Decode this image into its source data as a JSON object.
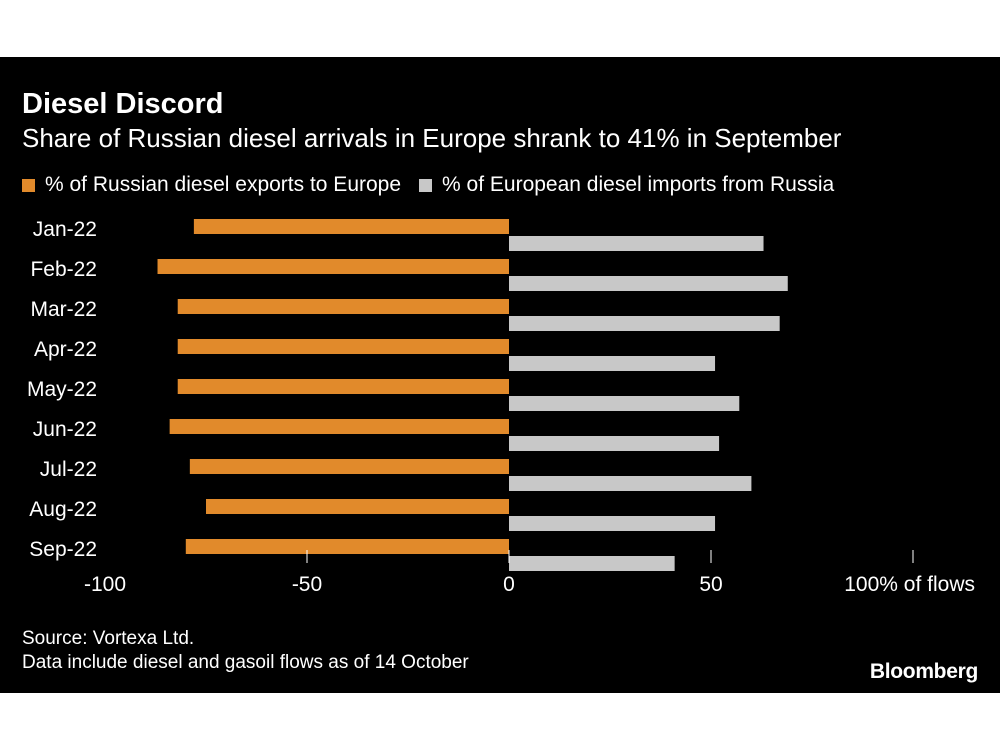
{
  "header": {
    "title": "Diesel Discord",
    "subtitle": "Share of Russian diesel arrivals in Europe shrank to 41% in September"
  },
  "footer": {
    "source": "Source: Vortexa Ltd.",
    "note": "Data include diesel and gasoil flows as of 14 October",
    "brand": "Bloomberg"
  },
  "colors": {
    "background": "#000000",
    "exports": "#E18A2B",
    "imports": "#C8C8C8",
    "text": "#FFFFFF"
  },
  "chart_data": {
    "type": "bar",
    "orientation": "horizontal",
    "categories": [
      "Jan-22",
      "Feb-22",
      "Mar-22",
      "Apr-22",
      "May-22",
      "Jun-22",
      "Jul-22",
      "Aug-22",
      "Sep-22"
    ],
    "series": [
      {
        "name": "% of Russian diesel exports to Europe",
        "color": "#E18A2B",
        "values": [
          -78,
          -87,
          -82,
          -82,
          -82,
          -84,
          -79,
          -75,
          -80
        ]
      },
      {
        "name": "% of European diesel imports from Russia",
        "color": "#C8C8C8",
        "values": [
          63,
          69,
          67,
          51,
          57,
          52,
          60,
          51,
          41
        ]
      }
    ],
    "xlim": [
      -100,
      100
    ],
    "xticks": [
      -100,
      -50,
      0,
      50,
      100
    ],
    "xtick_labels": [
      "-100",
      "-50",
      "0",
      "50",
      "100% of flows"
    ],
    "grid": false,
    "legend_position": "top-left"
  }
}
